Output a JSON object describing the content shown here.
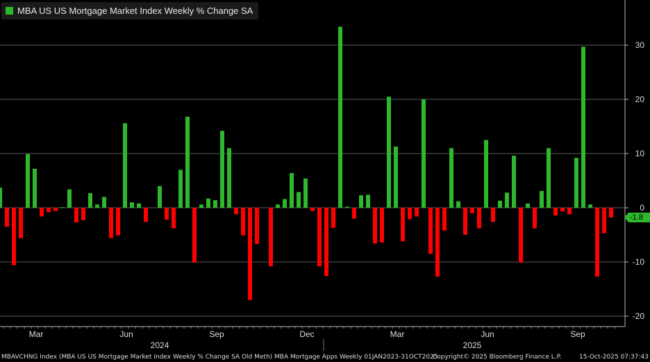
{
  "legend": {
    "label": "MBA US US Mortgage Market Index Weekly % Change SA",
    "color": "#2db82d"
  },
  "colors": {
    "positive": "#2db82d",
    "negative": "#ff0000",
    "grid": "#5a5a5a",
    "background": "#000000",
    "current_tag": "#2db82d"
  },
  "current_value_label": "-1.8",
  "footer": {
    "left": "MBAVCHNG Index (MBA US US Mortgage Market Index Weekly % Change SA Old Meth) MBA Mortgage Apps Weekly 01JAN2023-31OCT2025",
    "middle": "Copyright© 2025 Bloomberg Finance L.P.",
    "right": "15-Oct-2025 07:37:43"
  },
  "chart_data": {
    "type": "bar",
    "title": "MBA US US Mortgage Market Index Weekly % Change SA",
    "ylim": [
      -22,
      38
    ],
    "yticks": [
      -20,
      -10,
      0,
      10,
      20,
      30
    ],
    "grid": true,
    "y_axis_position": "right",
    "month_labels": [
      "Mar",
      "Jun",
      "Sep",
      "Dec",
      "Mar",
      "Jun",
      "Sep"
    ],
    "month_label_weeks": [
      5.2,
      18.2,
      31.2,
      44.2,
      57.2,
      70.2,
      83.2
    ],
    "year_labels": [
      "2024",
      "2025"
    ],
    "year_label_weeks": [
      23,
      68
    ],
    "year_divider_week": 46.6,
    "series": [
      {
        "name": "MBA US US Mortgage Market Index Weekly % Change SA",
        "values": [
          3.7,
          -3.5,
          -10.6,
          -5.6,
          9.9,
          7.2,
          -1.6,
          -0.8,
          -0.6,
          0.1,
          3.4,
          -2.7,
          -2.3,
          2.7,
          0.6,
          2.0,
          -5.6,
          -5.1,
          15.6,
          1.0,
          0.8,
          -2.6,
          0.0,
          4.0,
          -2.2,
          -3.8,
          7.0,
          16.8,
          -10.1,
          0.6,
          1.7,
          1.4,
          14.2,
          11.0,
          -1.2,
          -5.1,
          -17.0,
          -6.7,
          0.0,
          -10.8,
          0.6,
          1.6,
          6.4,
          2.9,
          5.4,
          -0.6,
          -10.8,
          -12.6,
          -3.7,
          33.4,
          0.2,
          -2.0,
          2.3,
          2.4,
          -6.6,
          -6.4,
          20.5,
          11.3,
          -6.2,
          -2.1,
          -1.6,
          20.0,
          -8.5,
          -12.7,
          -4.2,
          11.0,
          1.2,
          -5.0,
          -1.0,
          -3.8,
          12.5,
          -2.6,
          1.3,
          2.8,
          9.6,
          -10.1,
          0.8,
          -3.8,
          3.1,
          11.0,
          -1.4,
          -0.7,
          -1.2,
          9.2,
          29.7,
          0.6,
          -12.7,
          -4.7,
          -1.8
        ]
      }
    ]
  }
}
